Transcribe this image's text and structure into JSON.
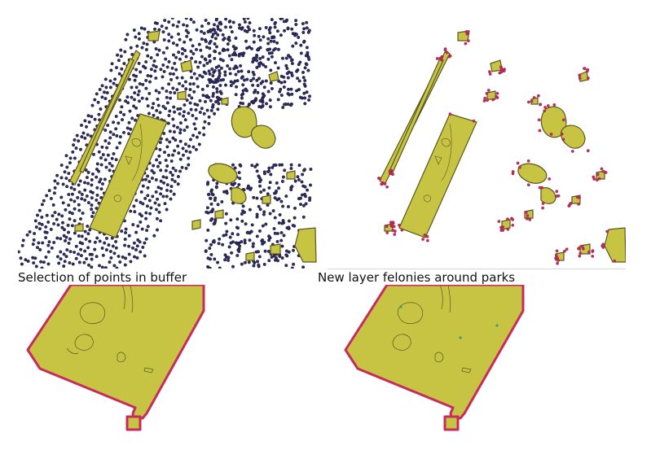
{
  "captions": {
    "left": "Selection of points in buffer",
    "right": "New layer felonies around parks"
  },
  "colors": {
    "park_fill": "#c8c443",
    "park_stroke": "#5a5722",
    "buffer_stroke": "#c72b5c",
    "point_fill": "#2f2d62",
    "point_stroke": "#12112e",
    "felony_point": "#3a9a8c"
  }
}
